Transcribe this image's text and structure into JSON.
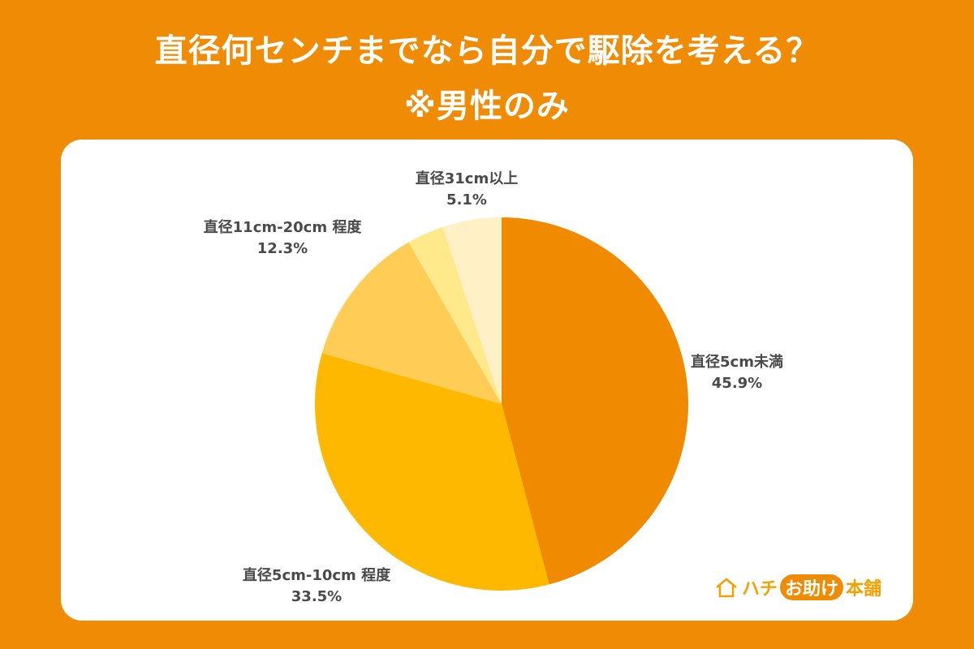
{
  "title": {
    "line1": "直径何センチまでなら自分で駆除を考える？",
    "line2": "※男性のみ"
  },
  "logo": {
    "part1": "ハチ",
    "part2": "お助け",
    "part3": "本舗"
  },
  "chart_data": {
    "type": "pie",
    "start": "top",
    "direction": "clockwise",
    "slices": [
      {
        "label": "直径5cm未満",
        "value": 45.9,
        "value_text": "45.9%",
        "color": "#F08A00"
      },
      {
        "label": "直径5cm-10cm 程度",
        "value": 33.5,
        "value_text": "33.5%",
        "color": "#FFB800"
      },
      {
        "label": "直径11cm-20cm 程度",
        "value": 12.3,
        "value_text": "12.3%",
        "color": "#FFCC55"
      },
      {
        "label": "",
        "value": 3.2,
        "value_text": "",
        "color": "#FFE98A"
      },
      {
        "label": "直径31cm以上",
        "value": 5.1,
        "value_text": "5.1%",
        "color": "#FFF0C6"
      }
    ]
  }
}
